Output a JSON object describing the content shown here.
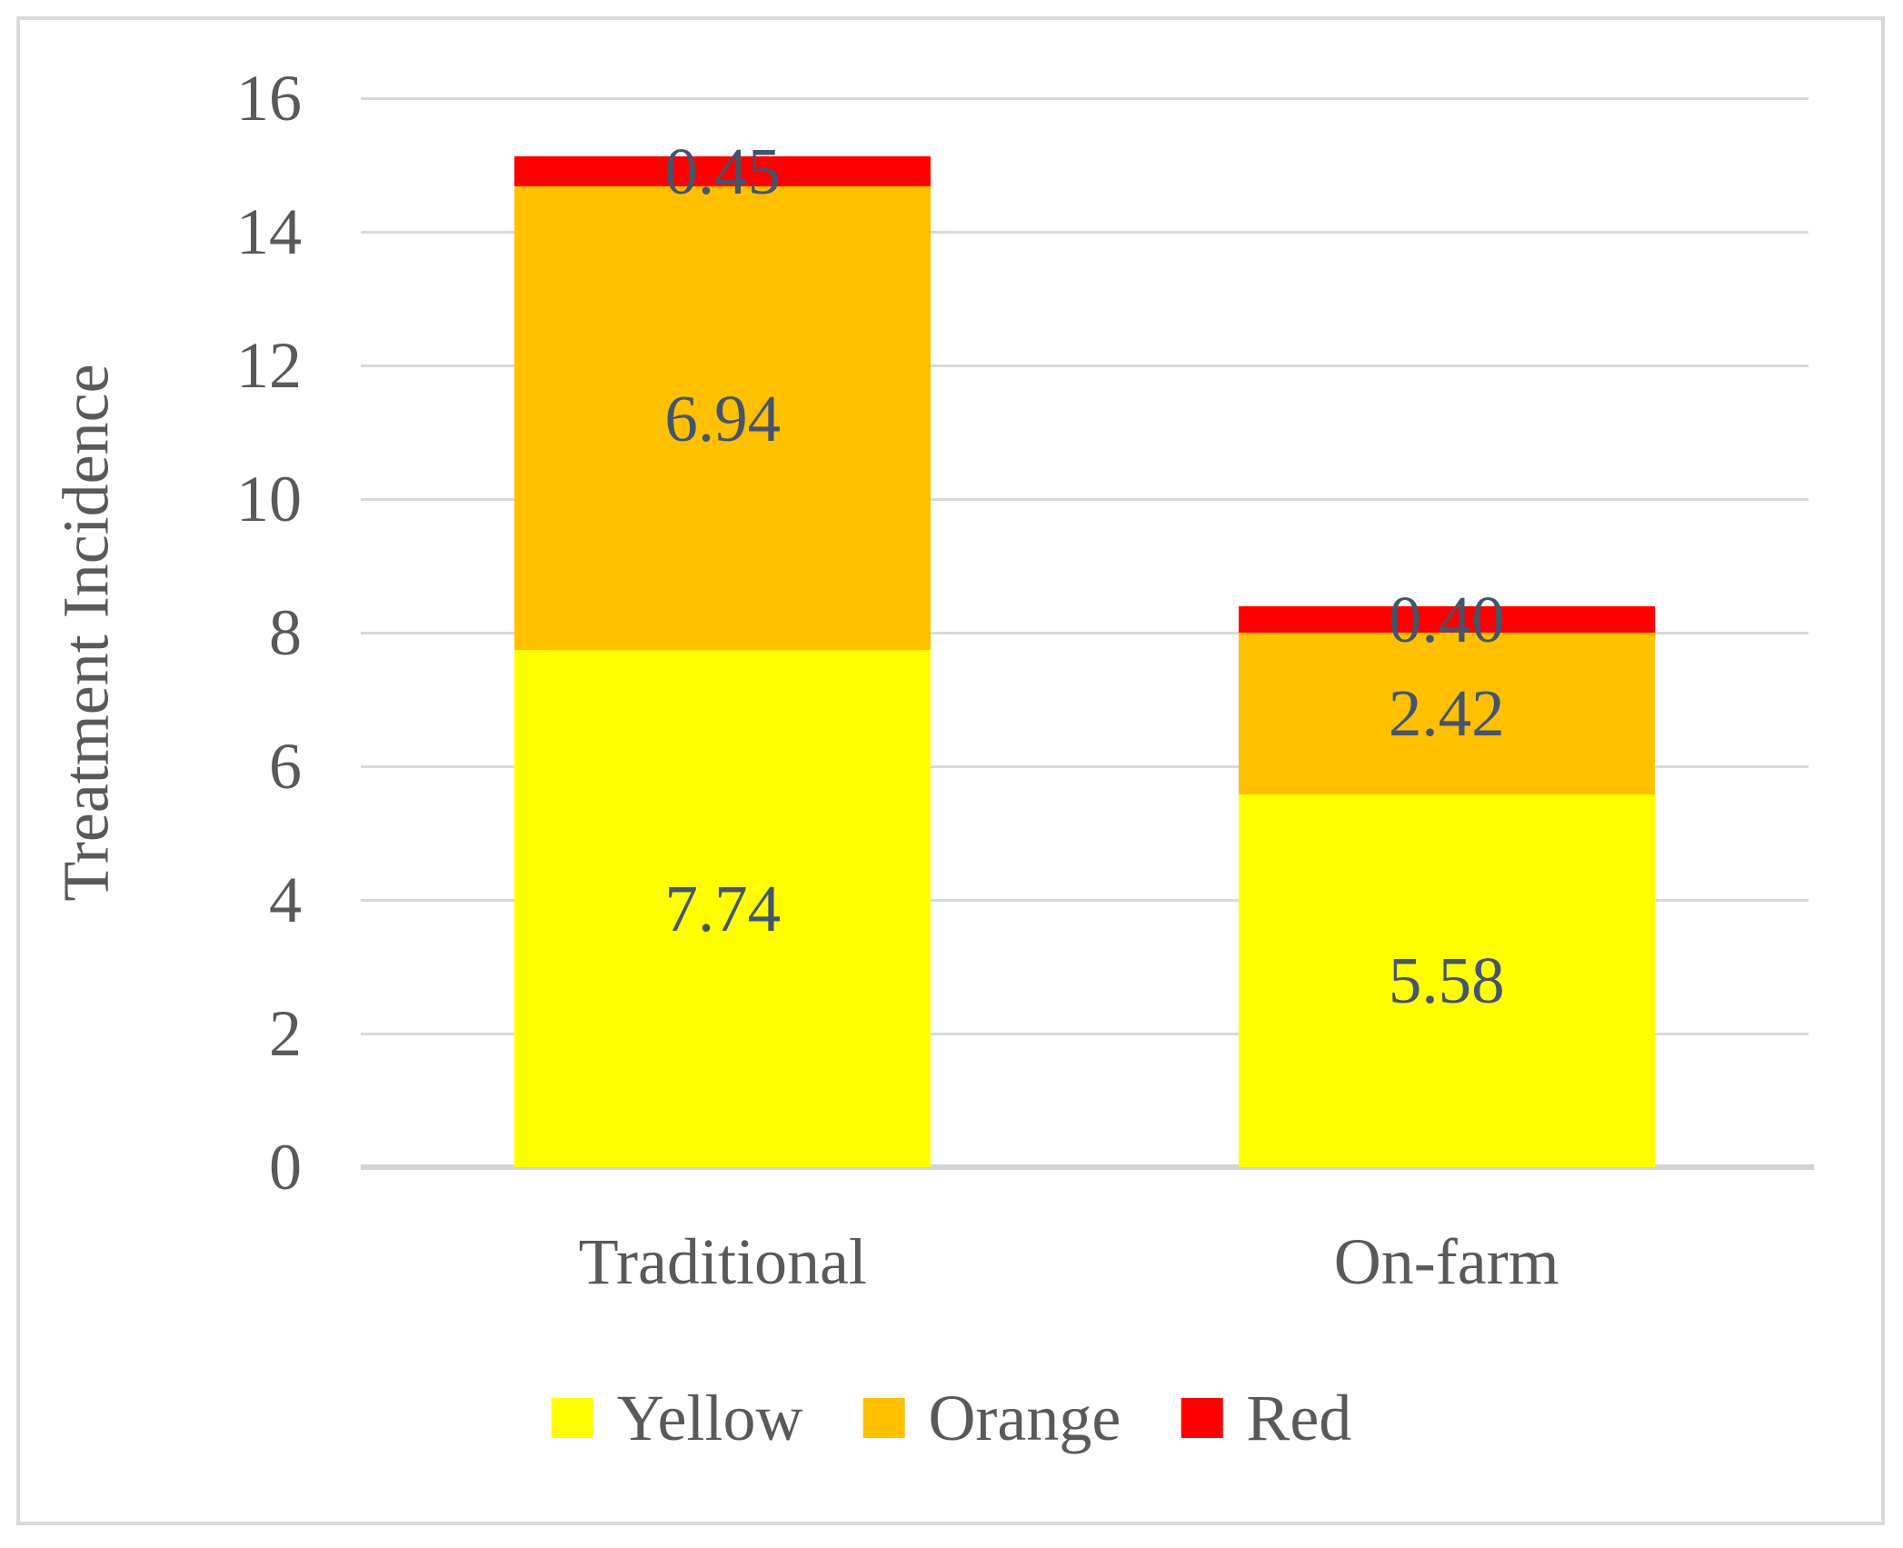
{
  "chart_data": {
    "type": "bar",
    "stacked": true,
    "title": "",
    "xlabel": "",
    "ylabel": "Treatment Incidence",
    "categories": [
      "Traditional",
      "On-farm"
    ],
    "series": [
      {
        "name": "Yellow",
        "color": "#FFFF00",
        "values": [
          7.74,
          5.58
        ],
        "value_labels": [
          "7.74",
          "5.58"
        ]
      },
      {
        "name": "Orange",
        "color": "#FFC000",
        "values": [
          6.94,
          2.42
        ],
        "value_labels": [
          "6.94",
          "2.42"
        ]
      },
      {
        "name": "Red",
        "color": "#FF0000",
        "values": [
          0.45,
          0.4
        ],
        "value_labels": [
          "0.45",
          "0.40"
        ]
      }
    ],
    "ylim": [
      0,
      16
    ],
    "ytick_step": 2,
    "yticks": [
      "0",
      "2",
      "4",
      "6",
      "8",
      "10",
      "12",
      "14",
      "16"
    ],
    "grid": true,
    "legend_position": "bottom",
    "colors": {
      "background": "#FFFFFF",
      "figure_border": "#D9D9D9",
      "gridline": "#D9D9D9",
      "axis_line": "#D3D3D3",
      "axis_text": "#595959",
      "data_label": "#44546A"
    }
  }
}
